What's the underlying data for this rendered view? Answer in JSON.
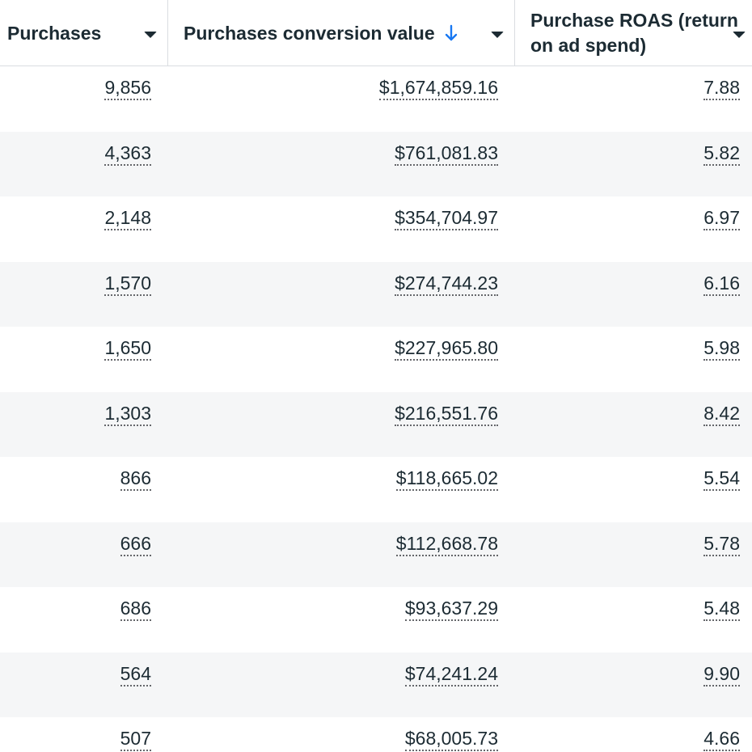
{
  "columns": [
    {
      "label": "Purchases"
    },
    {
      "label": "Purchases conversion value"
    },
    {
      "label": "Purchase ROAS (return on ad spend)"
    }
  ],
  "sort": {
    "column": "Purchases conversion value",
    "direction": "descending",
    "icon": "arrow-down-icon",
    "color": "#1877f2"
  },
  "rows": [
    {
      "purchases": "9,856",
      "value": "$1,674,859.16",
      "roas": "7.88"
    },
    {
      "purchases": "4,363",
      "value": "$761,081.83",
      "roas": "5.82"
    },
    {
      "purchases": "2,148",
      "value": "$354,704.97",
      "roas": "6.97"
    },
    {
      "purchases": "1,570",
      "value": "$274,744.23",
      "roas": "6.16"
    },
    {
      "purchases": "1,650",
      "value": "$227,965.80",
      "roas": "5.98"
    },
    {
      "purchases": "1,303",
      "value": "$216,551.76",
      "roas": "8.42"
    },
    {
      "purchases": "866",
      "value": "$118,665.02",
      "roas": "5.54"
    },
    {
      "purchases": "666",
      "value": "$112,668.78",
      "roas": "5.78"
    },
    {
      "purchases": "686",
      "value": "$93,637.29",
      "roas": "5.48"
    },
    {
      "purchases": "564",
      "value": "$74,241.24",
      "roas": "9.90"
    },
    {
      "purchases": "507",
      "value": "$68,005.73",
      "roas": "4.66"
    }
  ]
}
